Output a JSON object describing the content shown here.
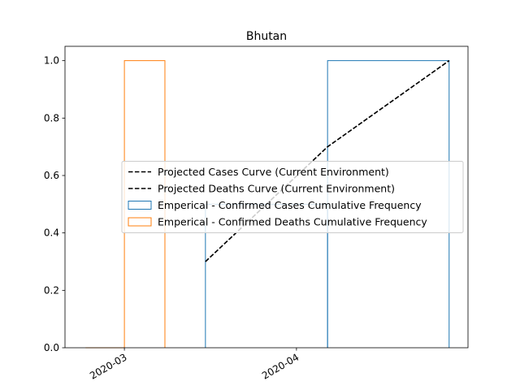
{
  "chart_data": {
    "type": "histogram",
    "title": "Bhutan",
    "xlim": [
      -10.7,
      61.9
    ],
    "xticks": [
      {
        "value": 0,
        "label": "2020-03"
      },
      {
        "value": 31,
        "label": "2020-04"
      }
    ],
    "ylim": [
      0,
      1.05
    ],
    "yticks": [
      {
        "value": 0,
        "label": "0.0"
      },
      0.2,
      0.4,
      0.6,
      0.8,
      {
        "value": 1,
        "label": "1.0"
      }
    ],
    "lines": [
      {
        "name": "Projected Cases Curve (Current Environment)",
        "color": "#000000",
        "x": [
          14.6,
          36.6,
          58.5
        ],
        "values": [
          0.3,
          0.7,
          1.0
        ]
      },
      {
        "name": "Projected Deaths Curve (Current Environment)",
        "color": "#000000",
        "x": [
          14.6,
          36.6,
          58.5
        ],
        "values": [
          0.3,
          0.7,
          1.0
        ]
      }
    ],
    "histograms": [
      {
        "name": "Emperical - Confirmed Cases Cumulative Frequency",
        "color": "#1f77b4",
        "bins": [
          14.6,
          36.6,
          58.5
        ],
        "values": [
          0.5,
          1
        ]
      },
      {
        "name": "Emperical - Confirmed Deaths Cumulative Frequency",
        "color": "#ff7f0e",
        "bins": [
          -7,
          0,
          7.3
        ],
        "values": [
          0,
          1
        ]
      }
    ],
    "legend": "center right"
  }
}
